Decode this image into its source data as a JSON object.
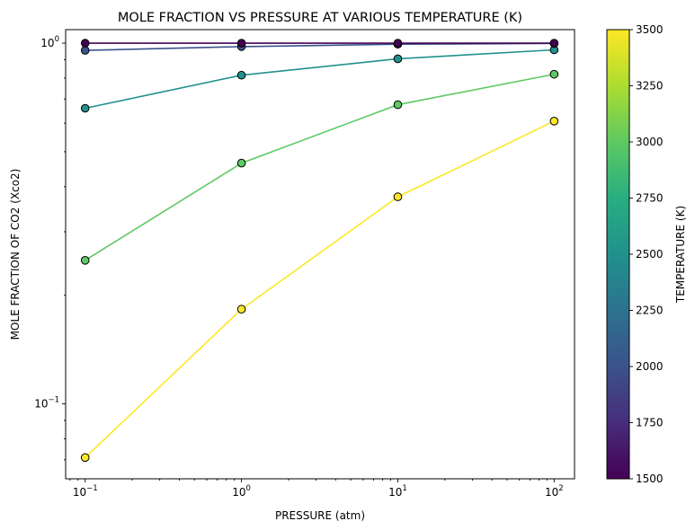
{
  "chart_data": {
    "type": "line",
    "title": "MOLE FRACTION VS PRESSURE AT VARIOUS TEMPERATURE (K)",
    "xlabel": "PRESSURE (atm)",
    "ylabel": "MOLE FRACTION OF CO2 (Xco2)",
    "xscale": "log",
    "yscale": "log",
    "xlim": [
      0.075,
      135
    ],
    "ylim": [
      0.062,
      1.09
    ],
    "x": [
      0.1,
      1,
      10,
      100
    ],
    "x_ticks": [
      {
        "value": 0.1,
        "base": "10",
        "exp": "−1"
      },
      {
        "value": 1,
        "base": "10",
        "exp": "0"
      },
      {
        "value": 10,
        "base": "10",
        "exp": "1"
      },
      {
        "value": 100,
        "base": "10",
        "exp": "2"
      }
    ],
    "y_ticks": [
      {
        "value": 0.1,
        "base": "10",
        "exp": "−1"
      },
      {
        "value": 1,
        "base": "10",
        "exp": "0"
      }
    ],
    "series": [
      {
        "temperature": 1500,
        "color": "#440154",
        "values": [
          1.0,
          1.0,
          1.0,
          1.0
        ]
      },
      {
        "temperature": 2000,
        "color": "#3b528b",
        "values": [
          0.955,
          0.978,
          0.993,
          0.998
        ]
      },
      {
        "temperature": 2500,
        "color": "#21918c",
        "values": [
          0.66,
          0.815,
          0.905,
          0.958
        ]
      },
      {
        "temperature": 3000,
        "color": "#5ec962",
        "values": [
          0.25,
          0.465,
          0.675,
          0.82
        ]
      },
      {
        "temperature": 3500,
        "color": "#fde725",
        "values": [
          0.071,
          0.183,
          0.375,
          0.608
        ]
      }
    ],
    "grid": false,
    "colorbar": {
      "label": "TEMPERATURE (K)",
      "min": 1500,
      "max": 3500,
      "colormap": "viridis",
      "ticks": [
        "1500",
        "1750",
        "2000",
        "2250",
        "2500",
        "2750",
        "3000",
        "3250",
        "3500"
      ]
    }
  }
}
